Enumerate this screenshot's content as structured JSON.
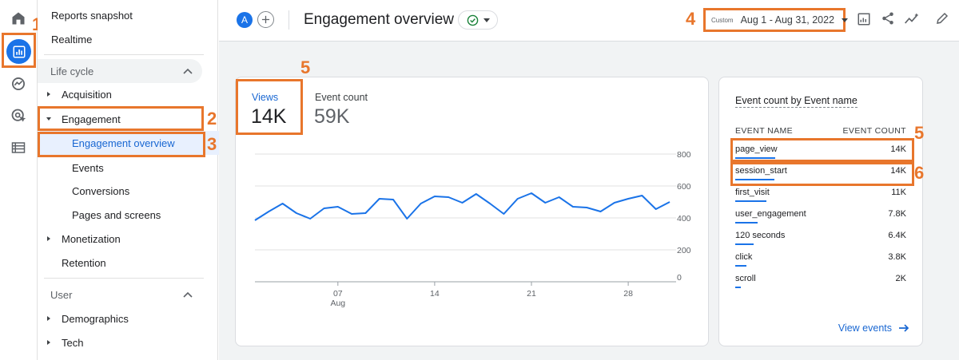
{
  "annotations": {
    "n1": "1",
    "n2": "2",
    "n3": "3",
    "n4": "4",
    "n5a": "5",
    "n5b": "5",
    "n6": "6"
  },
  "nav": {
    "reports_snapshot": "Reports snapshot",
    "realtime": "Realtime",
    "lifecycle": "Life cycle",
    "acquisition": "Acquisition",
    "engagement": "Engagement",
    "engagement_overview": "Engagement overview",
    "events": "Events",
    "conversions": "Conversions",
    "pages_and_screens": "Pages and screens",
    "monetization": "Monetization",
    "retention": "Retention",
    "user": "User",
    "demographics": "Demographics",
    "tech": "Tech"
  },
  "header": {
    "avatar_letter": "A",
    "title": "Engagement overview",
    "date_label": "Custom",
    "date_range": "Aug 1 - Aug 31, 2022"
  },
  "metrics": {
    "views_label": "Views",
    "views_value": "14K",
    "event_count_label": "Event count",
    "event_count_value": "59K"
  },
  "chart_data": {
    "type": "line",
    "title": "",
    "xlabel": "",
    "ylabel": "",
    "ylim": [
      0,
      800
    ],
    "yticks": [
      "800",
      "600",
      "400",
      "200",
      "0"
    ],
    "xticks": [
      {
        "day": 7,
        "label": "07",
        "sub": "Aug"
      },
      {
        "day": 14,
        "label": "14",
        "sub": ""
      },
      {
        "day": 21,
        "label": "21",
        "sub": ""
      },
      {
        "day": 28,
        "label": "28",
        "sub": ""
      }
    ],
    "x": [
      1,
      2,
      3,
      4,
      5,
      6,
      7,
      8,
      9,
      10,
      11,
      12,
      13,
      14,
      15,
      16,
      17,
      18,
      19,
      20,
      21,
      22,
      23,
      24,
      25,
      26,
      27,
      28,
      29,
      30,
      31
    ],
    "series": [
      {
        "values": [
          385,
          440,
          490,
          430,
          395,
          460,
          470,
          425,
          430,
          520,
          515,
          395,
          490,
          535,
          530,
          495,
          550,
          490,
          425,
          520,
          555,
          495,
          530,
          470,
          465,
          440,
          495,
          520,
          540,
          455,
          500
        ]
      }
    ],
    "grid": true,
    "line_color": "#1a73e8"
  },
  "events_table": {
    "title": "Event count by Event name",
    "col_name": "EVENT NAME",
    "col_count": "EVENT COUNT",
    "rows": [
      {
        "name": "page_view",
        "count": "14K",
        "frac": 1.0
      },
      {
        "name": "session_start",
        "count": "14K",
        "frac": 0.98
      },
      {
        "name": "first_visit",
        "count": "11K",
        "frac": 0.78
      },
      {
        "name": "user_engagement",
        "count": "7.8K",
        "frac": 0.56
      },
      {
        "name": "120 seconds",
        "count": "6.4K",
        "frac": 0.46
      },
      {
        "name": "click",
        "count": "3.8K",
        "frac": 0.27
      },
      {
        "name": "scroll",
        "count": "2K",
        "frac": 0.14
      }
    ],
    "view_events": "View events"
  },
  "colors": {
    "accent": "#1a73e8",
    "annotation": "#e8762c",
    "check": "#188038"
  },
  "icons": [
    "home-icon",
    "reports-icon",
    "explore-icon",
    "advertising-icon",
    "configure-icon",
    "checkmark-icon",
    "share-icon",
    "insights-icon",
    "edit-icon",
    "customize-report-icon"
  ]
}
